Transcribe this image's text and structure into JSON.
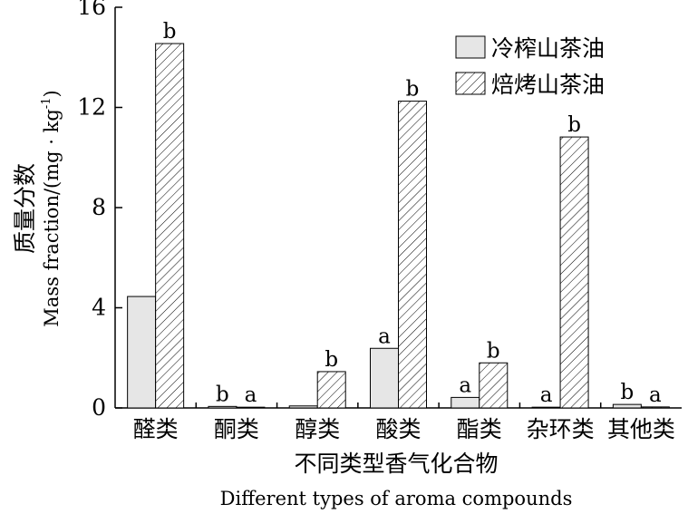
{
  "chart_data": {
    "type": "bar",
    "ylabel_cn": "质量分数",
    "ylabel_en": "Mass fraction/(mg · kg",
    "ylabel_exp": "-1",
    "ylabel_close": ")",
    "xlabel_cn": "不同类型香气化合物",
    "xlabel_en": "Different types of aroma compounds",
    "ylim": [
      0,
      16
    ],
    "yticks": [
      "0",
      "4",
      "8",
      "12",
      "16"
    ],
    "ytick_values": [
      0,
      4,
      8,
      12,
      16
    ],
    "legend_position": "top-right",
    "categories": [
      "醛类",
      "酮类",
      "醇类",
      "酸类",
      "酯类",
      "杂环类",
      "其他类"
    ],
    "series": [
      {
        "name": "冷榨山茶油",
        "fill": "#e6e6e6",
        "pattern": "solid",
        "values": [
          4.45,
          0.06,
          0.08,
          2.38,
          0.42,
          0.03,
          0.14
        ],
        "labels": [
          "",
          "b",
          "",
          "a",
          "a",
          "a",
          "b"
        ]
      },
      {
        "name": "焙烤山茶油",
        "fill": "#ffffff",
        "pattern": "hatch",
        "values": [
          14.55,
          0.03,
          1.45,
          12.25,
          1.8,
          10.82,
          0.04
        ],
        "labels": [
          "b",
          "a",
          "b",
          "b",
          "b",
          "b",
          "a"
        ]
      }
    ]
  }
}
